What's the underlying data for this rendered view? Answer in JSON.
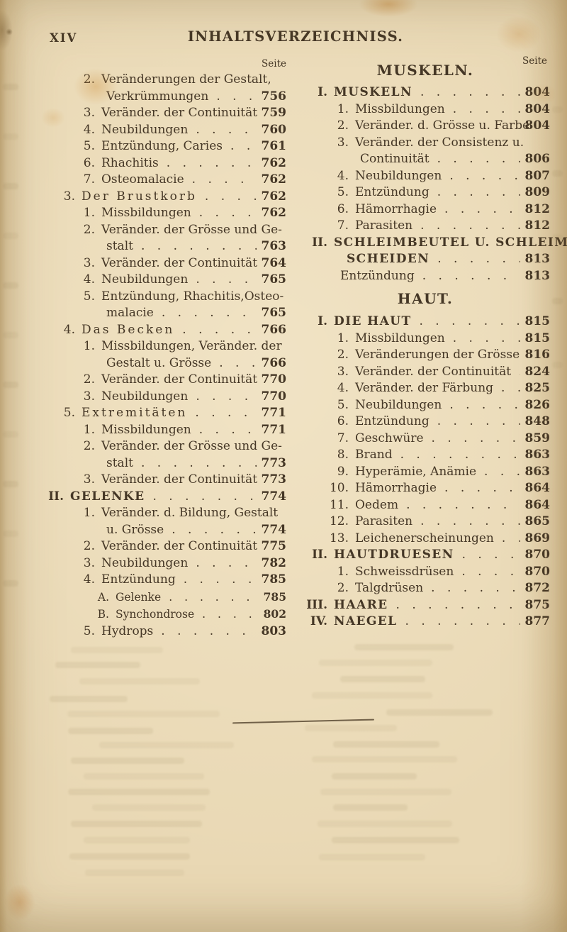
{
  "header": {
    "folio": "XIV",
    "title": "INHALTSVERZEICHNISS.",
    "column_page_labels": [
      "Seite",
      "Seite"
    ]
  },
  "colors": {
    "paper": "#e9d8b4",
    "ink": "#453726",
    "stain_orange": "#c8863c"
  },
  "columns": [
    {
      "side": "left",
      "lines": [
        {
          "kind": "l2",
          "num": "2.",
          "text": "Veränderungen der Gestalt,",
          "page": ""
        },
        {
          "kind": "cont",
          "num": "",
          "text": "Verkrümmungen",
          "page": "756"
        },
        {
          "kind": "l2",
          "num": "3.",
          "text": "Veränder. der Continuität",
          "page": "759"
        },
        {
          "kind": "l2",
          "num": "4.",
          "text": "Neubildungen",
          "page": "760"
        },
        {
          "kind": "l2",
          "num": "5.",
          "text": "Entzündung, Caries",
          "page": "761"
        },
        {
          "kind": "l2",
          "num": "6.",
          "text": "Rhachitis",
          "page": "762"
        },
        {
          "kind": "l2",
          "num": "7.",
          "text": "Osteomalacie",
          "page": "762"
        },
        {
          "kind": "l1",
          "num": "3.",
          "text": "Der Brustkorb",
          "page": "762",
          "sperr": true
        },
        {
          "kind": "l2",
          "num": "1.",
          "text": "Missbildungen",
          "page": "762"
        },
        {
          "kind": "l2",
          "num": "2.",
          "text": "Veränder. der Grösse und Ge-",
          "page": ""
        },
        {
          "kind": "cont",
          "num": "",
          "text": "stalt",
          "page": "763"
        },
        {
          "kind": "l2",
          "num": "3.",
          "text": "Veränder. der Continuität",
          "page": "764"
        },
        {
          "kind": "l2",
          "num": "4.",
          "text": "Neubildungen",
          "page": "765"
        },
        {
          "kind": "l2",
          "num": "5.",
          "text": "Entzündung, Rhachitis,Osteo-",
          "page": ""
        },
        {
          "kind": "cont",
          "num": "",
          "text": "malacie",
          "page": "765"
        },
        {
          "kind": "l1",
          "num": "4.",
          "text": "Das Becken",
          "page": "766",
          "sperr": true
        },
        {
          "kind": "l2",
          "num": "1.",
          "text": "Missbildungen, Veränder. der",
          "page": ""
        },
        {
          "kind": "cont",
          "num": "",
          "text": "Gestalt u. Grösse",
          "page": "766"
        },
        {
          "kind": "l2",
          "num": "2.",
          "text": "Veränder. der Continuität",
          "page": "770"
        },
        {
          "kind": "l2",
          "num": "3.",
          "text": "Neubildungen",
          "page": "770"
        },
        {
          "kind": "l1",
          "num": "5.",
          "text": "Extremitäten",
          "page": "771",
          "sperr": true
        },
        {
          "kind": "l2",
          "num": "1.",
          "text": "Missbildungen",
          "page": "771"
        },
        {
          "kind": "l2",
          "num": "2.",
          "text": "Veränder. der Grösse und Ge-",
          "page": ""
        },
        {
          "kind": "cont",
          "num": "",
          "text": "stalt",
          "page": "773"
        },
        {
          "kind": "l2",
          "num": "3.",
          "text": "Veränder. der Continuität",
          "page": "773"
        },
        {
          "kind": "l0",
          "num": "II.",
          "text": "GELENKE",
          "page": "774"
        },
        {
          "kind": "l2",
          "num": "1.",
          "text": "Veränder. d. Bildung, Gestalt",
          "page": ""
        },
        {
          "kind": "cont",
          "num": "",
          "text": "u. Grösse",
          "page": "774"
        },
        {
          "kind": "l2",
          "num": "2.",
          "text": "Veränder. der Continuität",
          "page": "775"
        },
        {
          "kind": "l2",
          "num": "3.",
          "text": "Neubildungen",
          "page": "782"
        },
        {
          "kind": "l2",
          "num": "4.",
          "text": "Entzündung",
          "page": "785"
        },
        {
          "kind": "l3",
          "num": "A.",
          "text": "Gelenke",
          "page": "785"
        },
        {
          "kind": "l3",
          "num": "B.",
          "text": "Synchondrose",
          "page": "802"
        },
        {
          "kind": "l2",
          "num": "5.",
          "text": "Hydrops",
          "page": "803"
        }
      ]
    },
    {
      "side": "right",
      "lines": [
        {
          "kind": "heading",
          "num": "",
          "text": "MUSKELN.",
          "page": ""
        },
        {
          "kind": "l0",
          "num": "I.",
          "text": "MUSKELN",
          "page": "804"
        },
        {
          "kind": "l2",
          "num": "1.",
          "text": "Missbildungen",
          "page": "804"
        },
        {
          "kind": "l2",
          "num": "2.",
          "text": "Veränder. d. Grösse u. Farbe",
          "page": "804"
        },
        {
          "kind": "l2",
          "num": "3.",
          "text": "Veränder. der Consistenz u.",
          "page": ""
        },
        {
          "kind": "cont",
          "num": "",
          "text": "Continuität",
          "page": "806"
        },
        {
          "kind": "l2",
          "num": "4.",
          "text": "Neubildungen",
          "page": "807"
        },
        {
          "kind": "l2",
          "num": "5.",
          "text": "Entzündung",
          "page": "809"
        },
        {
          "kind": "l2",
          "num": "6.",
          "text": "Hämorrhagie",
          "page": "812"
        },
        {
          "kind": "l2",
          "num": "7.",
          "text": "Parasiten",
          "page": "812"
        },
        {
          "kind": "l0",
          "num": "II.",
          "text": "SCHLEIMBEUTEL U. SCHLEIM-",
          "page": ""
        },
        {
          "kind": "cont0",
          "num": "",
          "text": "SCHEIDEN",
          "page": "813",
          "caps": true
        },
        {
          "kind": "cont0",
          "num": "",
          "text": "Entzündung",
          "page": "813"
        },
        {
          "kind": "heading-mid",
          "num": "",
          "text": "HAUT.",
          "page": ""
        },
        {
          "kind": "l0",
          "num": "I.",
          "text": "DIE HAUT",
          "page": "815"
        },
        {
          "kind": "l2",
          "num": "1.",
          "text": "Missbildungen",
          "page": "815"
        },
        {
          "kind": "l2",
          "num": "2.",
          "text": "Veränderungen der Grösse",
          "page": "816"
        },
        {
          "kind": "l2",
          "num": "3.",
          "text": "Veränder. der Continuität",
          "page": "824"
        },
        {
          "kind": "l2",
          "num": "4.",
          "text": "Veränder. der Färbung",
          "page": "825"
        },
        {
          "kind": "l2",
          "num": "5.",
          "text": "Neubildungen",
          "page": "826"
        },
        {
          "kind": "l2",
          "num": "6.",
          "text": "Entzündung",
          "page": "848"
        },
        {
          "kind": "l2",
          "num": "7.",
          "text": "Geschwüre",
          "page": "859"
        },
        {
          "kind": "l2",
          "num": "8.",
          "text": "Brand",
          "page": "863"
        },
        {
          "kind": "l2",
          "num": "9.",
          "text": "Hyperämie, Anämie",
          "page": "863"
        },
        {
          "kind": "l2",
          "num": "10.",
          "text": "Hämorrhagie",
          "page": "864"
        },
        {
          "kind": "l2",
          "num": "11.",
          "text": "Oedem",
          "page": "864"
        },
        {
          "kind": "l2",
          "num": "12.",
          "text": "Parasiten",
          "page": "865"
        },
        {
          "kind": "l2",
          "num": "13.",
          "text": "Leichenerscheinungen",
          "page": "869"
        },
        {
          "kind": "l0",
          "num": "II.",
          "text": "HAUTDRUESEN",
          "page": "870"
        },
        {
          "kind": "l2",
          "num": "1.",
          "text": "Schweissdrüsen",
          "page": "870"
        },
        {
          "kind": "l2",
          "num": "2.",
          "text": "Talgdrüsen",
          "page": "872"
        },
        {
          "kind": "l0",
          "num": "III.",
          "text": "HAARE",
          "page": "875"
        },
        {
          "kind": "l0",
          "num": "IV.",
          "text": "NAEGEL",
          "page": "877"
        }
      ]
    }
  ]
}
